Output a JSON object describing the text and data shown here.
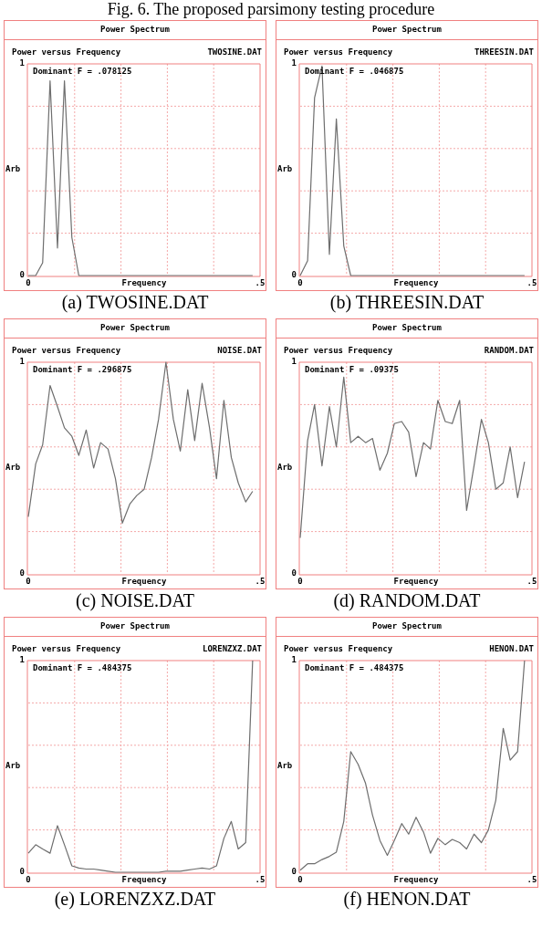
{
  "chart_data": [
    {
      "type": "line",
      "title": "Power Spectrum",
      "subtitle": "Power versus Frequency",
      "xlabel": "Frequency",
      "ylabel": "Arb",
      "x": [
        0,
        0.016,
        0.031,
        0.047,
        0.063,
        0.078,
        0.094,
        0.109,
        0.125,
        0.141,
        0.156,
        0.172,
        0.188,
        0.203,
        0.219,
        0.234,
        0.25,
        0.266,
        0.281,
        0.297,
        0.313,
        0.328,
        0.344,
        0.359,
        0.375,
        0.391,
        0.406,
        0.422,
        0.438,
        0.453,
        0.469,
        0.484
      ],
      "series": [
        {
          "color": "#6e6e6e",
          "values": [
            0,
            0,
            0.06,
            0.92,
            0.13,
            0.92,
            0.18,
            0,
            0,
            0,
            0,
            0,
            0,
            0,
            0,
            0,
            0,
            0,
            0,
            0,
            0,
            0,
            0,
            0,
            0,
            0,
            0,
            0,
            0,
            0,
            0,
            0
          ]
        }
      ],
      "xlim": [
        0,
        0.5
      ],
      "ylim": [
        0,
        1
      ],
      "xticks": [
        {
          "value": 0,
          "label": "0"
        },
        {
          "value": 0.1,
          "label": null
        },
        {
          "value": 0.2,
          "label": null
        },
        {
          "value": 0.3,
          "label": null
        },
        {
          "value": 0.4,
          "label": null
        },
        {
          "value": 0.5,
          "label": ".5"
        }
      ],
      "yticks": [
        {
          "value": 0,
          "label": "0"
        },
        {
          "value": 0.2,
          "label": null
        },
        {
          "value": 0.4,
          "label": null
        },
        {
          "value": 0.6,
          "label": null
        },
        {
          "value": 0.8,
          "label": null
        },
        {
          "value": 1,
          "label": "1"
        }
      ],
      "grid": true,
      "marker": "none",
      "annotations": [
        "TWOSINE.DAT",
        "Dominant F = .078125",
        "(a) TWOSINE.DAT",
        "Fig. 6. The proposed parsimony testing procedure"
      ]
    },
    {
      "type": "line",
      "title": "Power Spectrum",
      "subtitle": "Power versus Frequency",
      "xlabel": "Frequency",
      "ylabel": "Arb",
      "x": [
        0,
        0.016,
        0.031,
        0.047,
        0.063,
        0.078,
        0.094,
        0.109,
        0.125,
        0.141,
        0.156,
        0.172,
        0.188,
        0.203,
        0.219,
        0.234,
        0.25,
        0.266,
        0.281,
        0.297,
        0.313,
        0.328,
        0.344,
        0.359,
        0.375,
        0.391,
        0.406,
        0.422,
        0.438,
        0.453,
        0.469,
        0.484
      ],
      "series": [
        {
          "color": "#6e6e6e",
          "values": [
            0,
            0.07,
            0.84,
            0.99,
            0.1,
            0.74,
            0.14,
            0,
            0,
            0,
            0,
            0,
            0,
            0,
            0,
            0,
            0,
            0,
            0,
            0,
            0,
            0,
            0,
            0,
            0,
            0,
            0,
            0,
            0,
            0,
            0,
            0
          ]
        }
      ],
      "xlim": [
        0,
        0.5
      ],
      "ylim": [
        0,
        1
      ],
      "xticks": [
        {
          "value": 0,
          "label": "0"
        },
        {
          "value": 0.1,
          "label": null
        },
        {
          "value": 0.2,
          "label": null
        },
        {
          "value": 0.3,
          "label": null
        },
        {
          "value": 0.4,
          "label": null
        },
        {
          "value": 0.5,
          "label": ".5"
        }
      ],
      "yticks": [
        {
          "value": 0,
          "label": "0"
        },
        {
          "value": 0.2,
          "label": null
        },
        {
          "value": 0.4,
          "label": null
        },
        {
          "value": 0.6,
          "label": null
        },
        {
          "value": 0.8,
          "label": null
        },
        {
          "value": 1,
          "label": "1"
        }
      ],
      "grid": true,
      "marker": "none",
      "annotations": [
        "THREESIN.DAT",
        "Dominant F = .046875",
        "(b) THREESIN.DAT"
      ]
    },
    {
      "type": "line",
      "title": "Power Spectrum",
      "subtitle": "Power versus Frequency",
      "xlabel": "Frequency",
      "ylabel": "Arb",
      "x": [
        0,
        0.016,
        0.031,
        0.047,
        0.063,
        0.078,
        0.094,
        0.109,
        0.125,
        0.141,
        0.156,
        0.172,
        0.188,
        0.203,
        0.219,
        0.234,
        0.25,
        0.266,
        0.281,
        0.297,
        0.313,
        0.328,
        0.344,
        0.359,
        0.375,
        0.391,
        0.406,
        0.422,
        0.438,
        0.453,
        0.469,
        0.484
      ],
      "series": [
        {
          "color": "#6e6e6e",
          "values": [
            0.27,
            0.52,
            0.61,
            0.89,
            0.79,
            0.69,
            0.65,
            0.56,
            0.68,
            0.5,
            0.62,
            0.59,
            0.45,
            0.24,
            0.33,
            0.37,
            0.4,
            0.55,
            0.73,
            1,
            0.73,
            0.58,
            0.87,
            0.63,
            0.9,
            0.69,
            0.45,
            0.82,
            0.55,
            0.43,
            0.34,
            0.39
          ]
        }
      ],
      "xlim": [
        0,
        0.5
      ],
      "ylim": [
        0,
        1
      ],
      "xticks": [
        {
          "value": 0,
          "label": "0"
        },
        {
          "value": 0.1,
          "label": null
        },
        {
          "value": 0.2,
          "label": null
        },
        {
          "value": 0.3,
          "label": null
        },
        {
          "value": 0.4,
          "label": null
        },
        {
          "value": 0.5,
          "label": ".5"
        }
      ],
      "yticks": [
        {
          "value": 0,
          "label": "0"
        },
        {
          "value": 0.2,
          "label": null
        },
        {
          "value": 0.4,
          "label": null
        },
        {
          "value": 0.6,
          "label": null
        },
        {
          "value": 0.8,
          "label": null
        },
        {
          "value": 1,
          "label": "1"
        }
      ],
      "grid": true,
      "marker": "none",
      "annotations": [
        "NOISE.DAT",
        "Dominant F = .296875",
        "(c) NOISE.DAT"
      ]
    },
    {
      "type": "line",
      "title": "Power Spectrum",
      "subtitle": "Power versus Frequency",
      "xlabel": "Frequency",
      "ylabel": "Arb",
      "x": [
        0,
        0.016,
        0.031,
        0.047,
        0.063,
        0.078,
        0.094,
        0.109,
        0.125,
        0.141,
        0.156,
        0.172,
        0.188,
        0.203,
        0.219,
        0.234,
        0.25,
        0.266,
        0.281,
        0.297,
        0.313,
        0.328,
        0.344,
        0.359,
        0.375,
        0.391,
        0.406,
        0.422,
        0.438,
        0.453,
        0.469,
        0.484
      ],
      "series": [
        {
          "color": "#6e6e6e",
          "values": [
            0.17,
            0.63,
            0.8,
            0.51,
            0.79,
            0.6,
            0.93,
            0.62,
            0.65,
            0.62,
            0.64,
            0.49,
            0.57,
            0.71,
            0.72,
            0.67,
            0.46,
            0.62,
            0.59,
            0.82,
            0.72,
            0.71,
            0.82,
            0.3,
            0.51,
            0.73,
            0.62,
            0.4,
            0.43,
            0.6,
            0.36,
            0.53
          ]
        }
      ],
      "xlim": [
        0,
        0.5
      ],
      "ylim": [
        0,
        1
      ],
      "xticks": [
        {
          "value": 0,
          "label": "0"
        },
        {
          "value": 0.1,
          "label": null
        },
        {
          "value": 0.2,
          "label": null
        },
        {
          "value": 0.3,
          "label": null
        },
        {
          "value": 0.4,
          "label": null
        },
        {
          "value": 0.5,
          "label": ".5"
        }
      ],
      "yticks": [
        {
          "value": 0,
          "label": "0"
        },
        {
          "value": 0.2,
          "label": null
        },
        {
          "value": 0.4,
          "label": null
        },
        {
          "value": 0.6,
          "label": null
        },
        {
          "value": 0.8,
          "label": null
        },
        {
          "value": 1,
          "label": "1"
        }
      ],
      "grid": true,
      "marker": "none",
      "annotations": [
        "RANDOM.DAT",
        "Dominant F = .09375",
        "(d) RANDOM.DAT"
      ]
    },
    {
      "type": "line",
      "title": "Power Spectrum",
      "subtitle": "Power versus Frequency",
      "xlabel": "Frequency",
      "ylabel": "Arb",
      "x": [
        0,
        0.016,
        0.031,
        0.047,
        0.063,
        0.078,
        0.094,
        0.109,
        0.125,
        0.141,
        0.156,
        0.172,
        0.188,
        0.203,
        0.219,
        0.234,
        0.25,
        0.266,
        0.281,
        0.297,
        0.313,
        0.328,
        0.344,
        0.359,
        0.375,
        0.391,
        0.406,
        0.422,
        0.438,
        0.453,
        0.469,
        0.484
      ],
      "series": [
        {
          "color": "#6e6e6e",
          "values": [
            0.09,
            0.13,
            0.11,
            0.09,
            0.22,
            0.13,
            0.03,
            0.02,
            0.015,
            0.015,
            0.01,
            0.005,
            0,
            0,
            0,
            0,
            0,
            0,
            0,
            0.005,
            0.005,
            0.005,
            0.01,
            0.015,
            0.02,
            0.015,
            0.03,
            0.16,
            0.24,
            0.11,
            0.14,
            1
          ]
        }
      ],
      "xlim": [
        0,
        0.5
      ],
      "ylim": [
        0,
        1
      ],
      "xticks": [
        {
          "value": 0,
          "label": "0"
        },
        {
          "value": 0.1,
          "label": null
        },
        {
          "value": 0.2,
          "label": null
        },
        {
          "value": 0.3,
          "label": null
        },
        {
          "value": 0.4,
          "label": null
        },
        {
          "value": 0.5,
          "label": ".5"
        }
      ],
      "yticks": [
        {
          "value": 0,
          "label": "0"
        },
        {
          "value": 0.2,
          "label": null
        },
        {
          "value": 0.4,
          "label": null
        },
        {
          "value": 0.6,
          "label": null
        },
        {
          "value": 0.8,
          "label": null
        },
        {
          "value": 1,
          "label": "1"
        }
      ],
      "grid": true,
      "marker": "none",
      "annotations": [
        "LORENZXZ.DAT",
        "Dominant F = .484375",
        "(e) LORENZXZ.DAT"
      ]
    },
    {
      "type": "line",
      "title": "Power Spectrum",
      "subtitle": "Power versus Frequency",
      "xlabel": "Frequency",
      "ylabel": "Arb",
      "x": [
        0,
        0.016,
        0.031,
        0.047,
        0.063,
        0.078,
        0.094,
        0.109,
        0.125,
        0.141,
        0.156,
        0.172,
        0.188,
        0.203,
        0.219,
        0.234,
        0.25,
        0.266,
        0.281,
        0.297,
        0.313,
        0.328,
        0.344,
        0.359,
        0.375,
        0.391,
        0.406,
        0.422,
        0.438,
        0.453,
        0.469,
        0.484
      ],
      "series": [
        {
          "color": "#6e6e6e",
          "values": [
            0.01,
            0.04,
            0.04,
            0.06,
            0.075,
            0.095,
            0.24,
            0.57,
            0.51,
            0.42,
            0.27,
            0.15,
            0.08,
            0.15,
            0.23,
            0.18,
            0.26,
            0.19,
            0.09,
            0.16,
            0.13,
            0.155,
            0.14,
            0.11,
            0.18,
            0.14,
            0.2,
            0.34,
            0.68,
            0.53,
            0.57,
            1
          ]
        }
      ],
      "xlim": [
        0,
        0.5
      ],
      "ylim": [
        0,
        1
      ],
      "xticks": [
        {
          "value": 0,
          "label": "0"
        },
        {
          "value": 0.1,
          "label": null
        },
        {
          "value": 0.2,
          "label": null
        },
        {
          "value": 0.3,
          "label": null
        },
        {
          "value": 0.4,
          "label": null
        },
        {
          "value": 0.5,
          "label": ".5"
        }
      ],
      "yticks": [
        {
          "value": 0,
          "label": "0"
        },
        {
          "value": 0.2,
          "label": null
        },
        {
          "value": 0.4,
          "label": null
        },
        {
          "value": 0.6,
          "label": null
        },
        {
          "value": 0.8,
          "label": null
        },
        {
          "value": 1,
          "label": "1"
        }
      ],
      "grid": true,
      "marker": "none",
      "annotations": [
        "HENON.DAT",
        "Dominant F = .484375",
        "(f) HENON.DAT"
      ]
    }
  ]
}
